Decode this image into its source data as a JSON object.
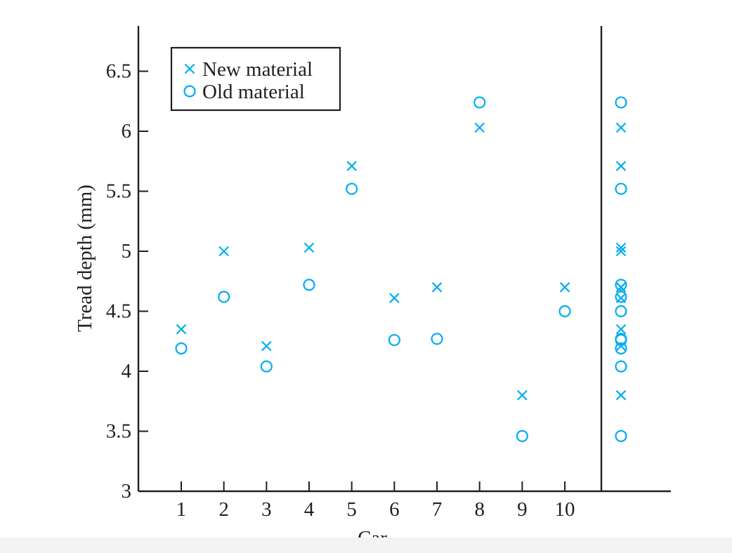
{
  "chart_data": {
    "type": "scatter",
    "title": "",
    "xlabel": "Car",
    "ylabel": "Tread depth (mm)",
    "xlim": [
      0,
      10.9
    ],
    "ylim": [
      3,
      6.9
    ],
    "x_ticks": [
      "1",
      "2",
      "3",
      "4",
      "5",
      "6",
      "7",
      "8",
      "9",
      "10"
    ],
    "y_ticks": [
      "3",
      "3.5",
      "4",
      "4.5",
      "5",
      "5.5",
      "6",
      "6.5"
    ],
    "y_tick_values": [
      3,
      3.5,
      4,
      4.5,
      5,
      5.5,
      6,
      6.5
    ],
    "grid": false,
    "legend_position": "top-left",
    "marker_color": "#00aeef",
    "axis_color": "#231f20",
    "series": [
      {
        "name": "New material",
        "marker": "x",
        "x": [
          1,
          2,
          3,
          4,
          5,
          6,
          7,
          8,
          9,
          10
        ],
        "values": [
          4.35,
          5.0,
          4.21,
          5.03,
          5.71,
          4.61,
          4.7,
          6.03,
          3.8,
          4.7
        ]
      },
      {
        "name": "Old material",
        "marker": "o",
        "x": [
          1,
          2,
          3,
          4,
          5,
          6,
          7,
          8,
          9,
          10
        ],
        "values": [
          4.19,
          4.62,
          4.04,
          4.72,
          5.52,
          4.26,
          4.27,
          6.24,
          3.46,
          4.5
        ]
      }
    ],
    "marginal_panel": {
      "description_side": "right",
      "shows": "all values of both series"
    }
  }
}
